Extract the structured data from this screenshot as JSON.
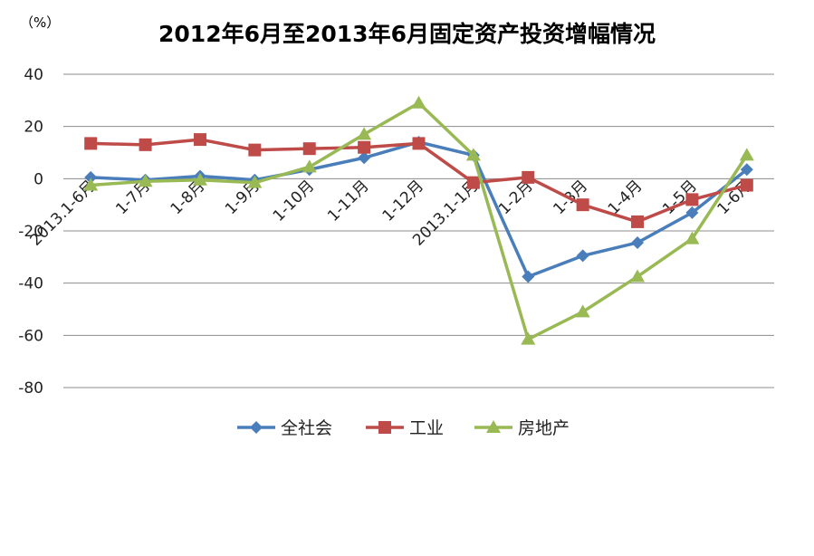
{
  "chart_data": {
    "type": "line",
    "title": "2012年6月至2013年6月固定资产投资增幅情况",
    "unit_label": "（%）",
    "xlabel": "",
    "ylabel": "",
    "ylim": [
      -80,
      40
    ],
    "yticks": [
      40,
      20,
      0,
      -20,
      -40,
      -60,
      -80
    ],
    "y_tick_labels": [
      "40",
      "20",
      "0",
      "-20",
      "-40",
      "-60",
      "-80"
    ],
    "grid": true,
    "legend_position": "bottom",
    "categories": [
      "2013.1-6月",
      "1-7月",
      "1-8月",
      "1-9月",
      "1-10月",
      "1-11月",
      "1-12月",
      "2013.1-1月",
      "1-2月",
      "1-3月",
      "1-4月",
      "1-5月",
      "1-6月"
    ],
    "series": [
      {
        "name": "全社会",
        "color": "#4a7ebb",
        "marker": "diamond",
        "values": [
          0.5,
          -0.5,
          1,
          -0.5,
          3.5,
          8,
          14,
          9,
          -37.5,
          -29.5,
          -24.5,
          -13,
          3.5
        ]
      },
      {
        "name": "工业",
        "color": "#be4b48",
        "marker": "square",
        "values": [
          13.5,
          13,
          15,
          11,
          11.5,
          12,
          13.5,
          -1.5,
          0.5,
          -10,
          -16.5,
          -8,
          -2.5
        ]
      },
      {
        "name": "房地产",
        "color": "#98b954",
        "marker": "triangle",
        "values": [
          -2.5,
          -1,
          -0.5,
          -1.5,
          4.5,
          17,
          29,
          9,
          -61.5,
          -51,
          -37.5,
          -23,
          9
        ]
      }
    ]
  }
}
